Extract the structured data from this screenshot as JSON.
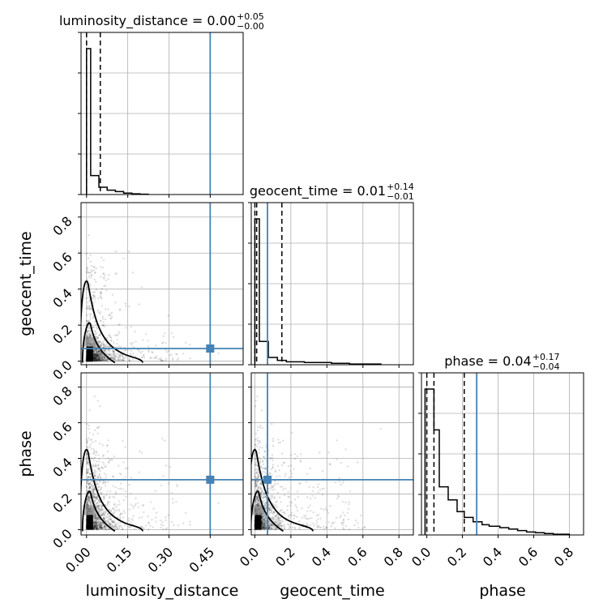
{
  "chart_data": {
    "type": "scatter",
    "subtype": "corner-plot",
    "parameters": [
      "luminosity_distance",
      "geocent_time",
      "phase"
    ],
    "titles": {
      "luminosity_distance": {
        "text": "luminosity_distance = 0.00",
        "plus": "+0.05",
        "minus": "−0.00"
      },
      "geocent_time": {
        "text": "geocent_time = 0.01",
        "plus": "+0.14",
        "minus": "−0.01"
      },
      "phase": {
        "text": "phase = 0.04",
        "plus": "+0.17",
        "minus": "−0.04"
      }
    },
    "axis_labels": {
      "x": [
        "luminosity_distance",
        "geocent_time",
        "phase"
      ],
      "y": [
        "geocent_time",
        "phase"
      ]
    },
    "ranges": {
      "luminosity_distance": [
        -0.02,
        0.57
      ],
      "geocent_time": [
        -0.02,
        0.88
      ],
      "phase": [
        -0.03,
        0.88
      ]
    },
    "ticks": {
      "luminosity_distance": [
        "0.00",
        "0.15",
        "0.30",
        "0.45"
      ],
      "geocent_time": [
        "0.0",
        "0.2",
        "0.4",
        "0.6",
        "0.8"
      ],
      "phase": [
        "0.0",
        "0.2",
        "0.4",
        "0.6",
        "0.8"
      ]
    },
    "truths": {
      "luminosity_distance": 0.45,
      "geocent_time": 0.07,
      "phase": 0.28
    },
    "quantile_lines": {
      "luminosity_distance": [
        0.0,
        0.0,
        0.05
      ],
      "geocent_time": [
        0.0,
        0.01,
        0.15
      ],
      "phase": [
        0.0,
        0.04,
        0.21
      ]
    },
    "histograms": {
      "luminosity_distance": {
        "edges": [
          0.0,
          0.015,
          0.045,
          0.075,
          0.105,
          0.135,
          0.165,
          0.195,
          0.225
        ],
        "values": [
          1.0,
          0.13,
          0.05,
          0.03,
          0.02,
          0.01,
          0.005,
          0.002
        ]
      },
      "geocent_time": {
        "edges": [
          0.0,
          0.025,
          0.075,
          0.125,
          0.175,
          0.275,
          0.425,
          0.525,
          0.7
        ],
        "values": [
          1.0,
          0.16,
          0.05,
          0.03,
          0.02,
          0.015,
          0.01,
          0.005
        ]
      },
      "phase": {
        "edges": [
          -0.01,
          0.04,
          0.07,
          0.12,
          0.17,
          0.21,
          0.26,
          0.31,
          0.35,
          0.41,
          0.46,
          0.51,
          0.56,
          0.61,
          0.66,
          0.71,
          0.8
        ],
        "values": [
          1.0,
          0.72,
          0.33,
          0.24,
          0.16,
          0.12,
          0.09,
          0.07,
          0.06,
          0.05,
          0.04,
          0.03,
          0.02,
          0.015,
          0.01,
          0.005
        ]
      }
    },
    "grid": true
  }
}
